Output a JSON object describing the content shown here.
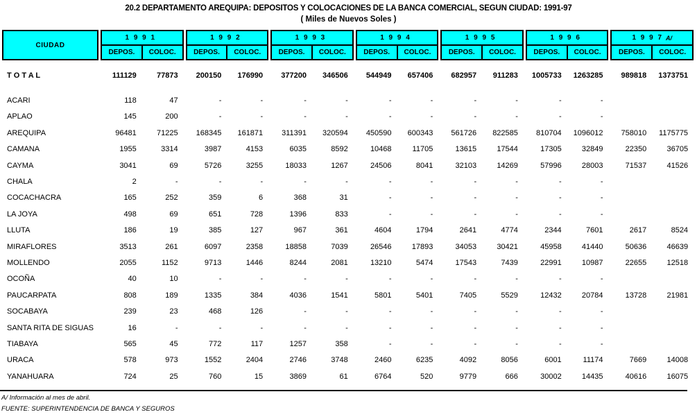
{
  "title": "20.2 DEPARTAMENTO AREQUIPA: DEPOSITOS Y COLOCACIONES DE LA BANCA COMERCIAL, SEGUN CIUDAD: 1991-97",
  "subtitle": "( Miles de Nuevos Soles )",
  "colors": {
    "header_bg": "#00FFFF",
    "border": "#000000",
    "text": "#000000"
  },
  "header": {
    "city_label": "CIUDAD",
    "deposits_label": "DEPOS.",
    "colocations_label": "COLOC.",
    "years": [
      {
        "label": "1 9 9 1",
        "note": ""
      },
      {
        "label": "1 9 9 2",
        "note": ""
      },
      {
        "label": "1 9 9 3",
        "note": ""
      },
      {
        "label": "1 9 9 4",
        "note": ""
      },
      {
        "label": "1 9 9 5",
        "note": ""
      },
      {
        "label": "1 9 9 6",
        "note": ""
      },
      {
        "label": "1 9 9 7",
        "note": "A/"
      }
    ]
  },
  "rows": [
    {
      "city": "T O T A L",
      "bold": true,
      "values": [
        "111129",
        "77873",
        "200150",
        "176990",
        "377200",
        "346506",
        "544949",
        "657406",
        "682957",
        "911283",
        "1005733",
        "1263285",
        "989818",
        "1373751"
      ]
    },
    {
      "city": "ACARI",
      "bold": false,
      "values": [
        "118",
        "47",
        "-",
        "-",
        "-",
        "-",
        "-",
        "-",
        "-",
        "-",
        "-",
        "-",
        "",
        ""
      ]
    },
    {
      "city": "APLAO",
      "bold": false,
      "values": [
        "145",
        "200",
        "-",
        "-",
        "-",
        "-",
        "-",
        "-",
        "-",
        "-",
        "-",
        "-",
        "",
        ""
      ]
    },
    {
      "city": "AREQUIPA",
      "bold": false,
      "values": [
        "96481",
        "71225",
        "168345",
        "161871",
        "311391",
        "320594",
        "450590",
        "600343",
        "561726",
        "822585",
        "810704",
        "1096012",
        "758010",
        "1175775"
      ]
    },
    {
      "city": "CAMANA",
      "bold": false,
      "values": [
        "1955",
        "3314",
        "3987",
        "4153",
        "6035",
        "8592",
        "10468",
        "11705",
        "13615",
        "17544",
        "17305",
        "32849",
        "22350",
        "36705"
      ]
    },
    {
      "city": "CAYMA",
      "bold": false,
      "values": [
        "3041",
        "69",
        "5726",
        "3255",
        "18033",
        "1267",
        "24506",
        "8041",
        "32103",
        "14269",
        "57996",
        "28003",
        "71537",
        "41526"
      ]
    },
    {
      "city": "CHALA",
      "bold": false,
      "values": [
        "2",
        "-",
        "-",
        "-",
        "-",
        "-",
        "-",
        "-",
        "-",
        "-",
        "-",
        "-",
        "",
        ""
      ]
    },
    {
      "city": "COCACHACRA",
      "bold": false,
      "values": [
        "165",
        "252",
        "359",
        "6",
        "368",
        "31",
        "-",
        "-",
        "-",
        "-",
        "-",
        "-",
        "",
        ""
      ]
    },
    {
      "city": "LA JOYA",
      "bold": false,
      "values": [
        "498",
        "69",
        "651",
        "728",
        "1396",
        "833",
        "-",
        "-",
        "-",
        "-",
        "-",
        "-",
        "",
        ""
      ]
    },
    {
      "city": "LLUTA",
      "bold": false,
      "values": [
        "186",
        "19",
        "385",
        "127",
        "967",
        "361",
        "4604",
        "1794",
        "2641",
        "4774",
        "2344",
        "7601",
        "2617",
        "8524"
      ]
    },
    {
      "city": "MIRAFLORES",
      "bold": false,
      "values": [
        "3513",
        "261",
        "6097",
        "2358",
        "18858",
        "7039",
        "26546",
        "17893",
        "34053",
        "30421",
        "45958",
        "41440",
        "50636",
        "46639"
      ]
    },
    {
      "city": "MOLLENDO",
      "bold": false,
      "values": [
        "2055",
        "1152",
        "9713",
        "1446",
        "8244",
        "2081",
        "13210",
        "5474",
        "17543",
        "7439",
        "22991",
        "10987",
        "22655",
        "12518"
      ]
    },
    {
      "city": "OCOÑA",
      "bold": false,
      "values": [
        "40",
        "10",
        "-",
        "-",
        "-",
        "-",
        "-",
        "-",
        "-",
        "-",
        "-",
        "-",
        "",
        ""
      ]
    },
    {
      "city": "PAUCARPATA",
      "bold": false,
      "values": [
        "808",
        "189",
        "1335",
        "384",
        "4036",
        "1541",
        "5801",
        "5401",
        "7405",
        "5529",
        "12432",
        "20784",
        "13728",
        "21981"
      ]
    },
    {
      "city": "SOCABAYA",
      "bold": false,
      "values": [
        "239",
        "23",
        "468",
        "126",
        "-",
        "-",
        "-",
        "-",
        "-",
        "-",
        "-",
        "-",
        "",
        ""
      ]
    },
    {
      "city": "SANTA RITA DE SIGUAS",
      "bold": false,
      "values": [
        "16",
        "-",
        "-",
        "-",
        "-",
        "-",
        "-",
        "-",
        "-",
        "-",
        "-",
        "-",
        "",
        ""
      ]
    },
    {
      "city": "TIABAYA",
      "bold": false,
      "values": [
        "565",
        "45",
        "772",
        "117",
        "1257",
        "358",
        "-",
        "-",
        "-",
        "-",
        "-",
        "-",
        "",
        ""
      ]
    },
    {
      "city": "URACA",
      "bold": false,
      "values": [
        "578",
        "973",
        "1552",
        "2404",
        "2746",
        "3748",
        "2460",
        "6235",
        "4092",
        "8056",
        "6001",
        "11174",
        "7669",
        "14008"
      ]
    },
    {
      "city": "YANAHUARA",
      "bold": false,
      "values": [
        "724",
        "25",
        "760",
        "15",
        "3869",
        "61",
        "6764",
        "520",
        "9779",
        "666",
        "30002",
        "14435",
        "40616",
        "16075"
      ]
    }
  ],
  "footnotes": {
    "note": "A/ Información al mes de abril.",
    "source": "FUENTE: SUPERINTENDENCIA DE BANCA Y SEGUROS"
  }
}
